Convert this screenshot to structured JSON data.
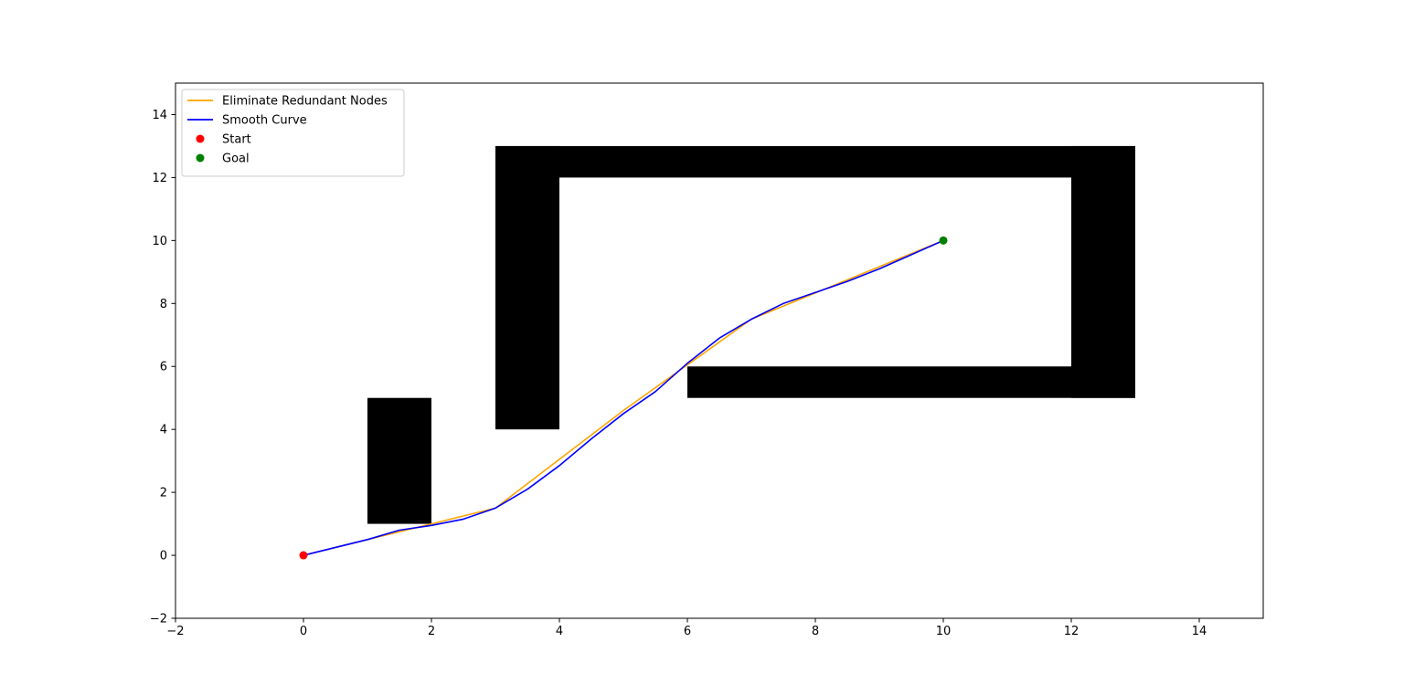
{
  "chart_data": {
    "type": "line",
    "title": "",
    "xlabel": "",
    "ylabel": "",
    "xlim": [
      -2,
      15
    ],
    "ylim": [
      -2,
      15
    ],
    "xticks": [
      -2,
      0,
      2,
      4,
      6,
      8,
      10,
      12,
      14
    ],
    "yticks": [
      -2,
      0,
      2,
      4,
      6,
      8,
      10,
      12,
      14
    ],
    "grid": false,
    "legend_position": "top-left",
    "obstacles": [
      {
        "x0": 1,
        "y0": 1,
        "x1": 2,
        "y1": 5
      },
      {
        "x0": 3,
        "y0": 4,
        "x1": 4,
        "y1": 13
      },
      {
        "x0": 3,
        "y0": 12,
        "x1": 13,
        "y1": 13
      },
      {
        "x0": 12,
        "y0": 5,
        "x1": 13,
        "y1": 13
      },
      {
        "x0": 6,
        "y0": 5,
        "x1": 13,
        "y1": 6
      }
    ],
    "obstacle_color": "#000000",
    "series": [
      {
        "name": "Eliminate Redundant Nodes",
        "color": "#ffa500",
        "points": [
          [
            0,
            0
          ],
          [
            2,
            1
          ],
          [
            3,
            1.5
          ],
          [
            5,
            4.6
          ],
          [
            7,
            7.5
          ],
          [
            10,
            10
          ]
        ]
      },
      {
        "name": "Smooth Curve",
        "color": "#0000ff",
        "points": [
          [
            0,
            0
          ],
          [
            0.5,
            0.25
          ],
          [
            1,
            0.5
          ],
          [
            1.5,
            0.8
          ],
          [
            2,
            0.95
          ],
          [
            2.5,
            1.15
          ],
          [
            3,
            1.5
          ],
          [
            3.5,
            2.1
          ],
          [
            4,
            2.85
          ],
          [
            4.5,
            3.7
          ],
          [
            5,
            4.5
          ],
          [
            5.5,
            5.2
          ],
          [
            6,
            6.1
          ],
          [
            6.5,
            6.9
          ],
          [
            7,
            7.5
          ],
          [
            7.5,
            8.0
          ],
          [
            8,
            8.35
          ],
          [
            8.5,
            8.7
          ],
          [
            9,
            9.1
          ],
          [
            9.5,
            9.55
          ],
          [
            10,
            10
          ]
        ]
      }
    ],
    "markers": [
      {
        "name": "Start",
        "x": 0,
        "y": 0,
        "color": "#ff0000"
      },
      {
        "name": "Goal",
        "x": 10,
        "y": 10,
        "color": "#008000"
      }
    ]
  }
}
